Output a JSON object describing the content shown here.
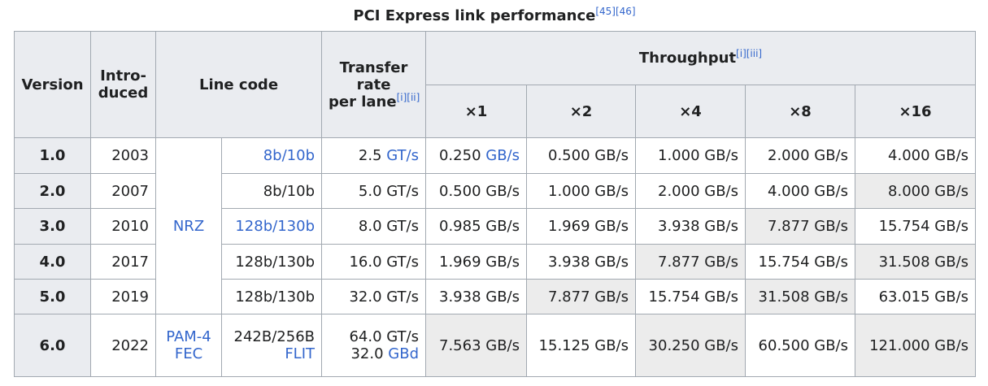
{
  "caption": {
    "title": "PCI Express link performance",
    "refs": "[45][46]"
  },
  "header": {
    "version": "Version",
    "introduced": [
      "Intro-",
      "duced"
    ],
    "line_code": "Line code",
    "transfer_rate": [
      "Transfer",
      "rate",
      "per lane"
    ],
    "transfer_rate_refs": "[i][ii]",
    "throughput": "Throughput",
    "throughput_refs": "[i][iii]",
    "lanes": [
      "×1",
      "×2",
      "×4",
      "×8",
      "×16"
    ]
  },
  "rows": [
    {
      "version": "1.0",
      "introduced": "2003",
      "modulation": [
        [
          {
            "text": "NRZ",
            "link": true
          }
        ]
      ],
      "code": [
        [
          {
            "text": "8b/10b",
            "link": true
          }
        ]
      ],
      "rate": [
        [
          {
            "text": "2.5"
          },
          {
            "text": "GT/s",
            "link": true
          }
        ]
      ],
      "throughput": [
        {
          "lines": [
            [
              {
                "text": "0.250"
              },
              {
                "text": "GB/s",
                "link": true
              }
            ]
          ],
          "shaded": false
        },
        {
          "lines": [
            [
              {
                "text": "0.500 GB/s"
              }
            ]
          ],
          "shaded": false
        },
        {
          "lines": [
            [
              {
                "text": "1.000 GB/s"
              }
            ]
          ],
          "shaded": false
        },
        {
          "lines": [
            [
              {
                "text": "2.000 GB/s"
              }
            ]
          ],
          "shaded": false
        },
        {
          "lines": [
            [
              {
                "text": "4.000 GB/s"
              }
            ]
          ],
          "shaded": false
        }
      ]
    },
    {
      "version": "2.0",
      "introduced": "2007",
      "code": [
        [
          {
            "text": "8b/10b"
          }
        ]
      ],
      "rate": [
        [
          {
            "text": "5.0 GT/s"
          }
        ]
      ],
      "throughput": [
        {
          "lines": [
            [
              {
                "text": "0.500 GB/s"
              }
            ]
          ],
          "shaded": false
        },
        {
          "lines": [
            [
              {
                "text": "1.000 GB/s"
              }
            ]
          ],
          "shaded": false
        },
        {
          "lines": [
            [
              {
                "text": "2.000 GB/s"
              }
            ]
          ],
          "shaded": false
        },
        {
          "lines": [
            [
              {
                "text": "4.000 GB/s"
              }
            ]
          ],
          "shaded": false
        },
        {
          "lines": [
            [
              {
                "text": "8.000 GB/s"
              }
            ]
          ],
          "shaded": true
        }
      ]
    },
    {
      "version": "3.0",
      "introduced": "2010",
      "code": [
        [
          {
            "text": "128b/130b",
            "link": true
          }
        ]
      ],
      "rate": [
        [
          {
            "text": "8.0 GT/s"
          }
        ]
      ],
      "throughput": [
        {
          "lines": [
            [
              {
                "text": "0.985 GB/s"
              }
            ]
          ],
          "shaded": false
        },
        {
          "lines": [
            [
              {
                "text": "1.969 GB/s"
              }
            ]
          ],
          "shaded": false
        },
        {
          "lines": [
            [
              {
                "text": "3.938 GB/s"
              }
            ]
          ],
          "shaded": false
        },
        {
          "lines": [
            [
              {
                "text": "7.877 GB/s"
              }
            ]
          ],
          "shaded": true
        },
        {
          "lines": [
            [
              {
                "text": "15.754 GB/s"
              }
            ]
          ],
          "shaded": false
        }
      ]
    },
    {
      "version": "4.0",
      "introduced": "2017",
      "code": [
        [
          {
            "text": "128b/130b"
          }
        ]
      ],
      "rate": [
        [
          {
            "text": "16.0 GT/s"
          }
        ]
      ],
      "throughput": [
        {
          "lines": [
            [
              {
                "text": "1.969 GB/s"
              }
            ]
          ],
          "shaded": false
        },
        {
          "lines": [
            [
              {
                "text": "3.938 GB/s"
              }
            ]
          ],
          "shaded": false
        },
        {
          "lines": [
            [
              {
                "text": "7.877 GB/s"
              }
            ]
          ],
          "shaded": true
        },
        {
          "lines": [
            [
              {
                "text": "15.754 GB/s"
              }
            ]
          ],
          "shaded": false
        },
        {
          "lines": [
            [
              {
                "text": "31.508 GB/s"
              }
            ]
          ],
          "shaded": true
        }
      ]
    },
    {
      "version": "5.0",
      "introduced": "2019",
      "code": [
        [
          {
            "text": "128b/130b"
          }
        ]
      ],
      "rate": [
        [
          {
            "text": "32.0 GT/s"
          }
        ]
      ],
      "throughput": [
        {
          "lines": [
            [
              {
                "text": "3.938 GB/s"
              }
            ]
          ],
          "shaded": false
        },
        {
          "lines": [
            [
              {
                "text": "7.877 GB/s"
              }
            ]
          ],
          "shaded": true
        },
        {
          "lines": [
            [
              {
                "text": "15.754 GB/s"
              }
            ]
          ],
          "shaded": false
        },
        {
          "lines": [
            [
              {
                "text": "31.508 GB/s"
              }
            ]
          ],
          "shaded": true
        },
        {
          "lines": [
            [
              {
                "text": "63.015 GB/s"
              }
            ]
          ],
          "shaded": false
        }
      ]
    },
    {
      "version": "6.0",
      "introduced": "2022",
      "modulation": [
        [
          {
            "text": "PAM-4",
            "link": true
          }
        ],
        [
          {
            "text": "FEC",
            "link": true
          }
        ]
      ],
      "code": [
        [
          {
            "text": "242B/256B"
          }
        ],
        [
          {
            "text": "FLIT",
            "link": true
          }
        ]
      ],
      "rate": [
        [
          {
            "text": "64.0 GT/s"
          }
        ],
        [
          {
            "text": "32.0"
          },
          {
            "text": "GBd",
            "link": true
          }
        ]
      ],
      "throughput": [
        {
          "lines": [
            [
              {
                "text": "7.563 GB/s"
              }
            ]
          ],
          "shaded": true
        },
        {
          "lines": [
            [
              {
                "text": "15.125 GB/s"
              }
            ]
          ],
          "shaded": false
        },
        {
          "lines": [
            [
              {
                "text": "30.250 GB/s"
              }
            ]
          ],
          "shaded": true
        },
        {
          "lines": [
            [
              {
                "text": "60.500 GB/s"
              }
            ]
          ],
          "shaded": false
        },
        {
          "lines": [
            [
              {
                "text": "121.000 GB/s"
              }
            ]
          ],
          "shaded": true
        }
      ]
    }
  ]
}
